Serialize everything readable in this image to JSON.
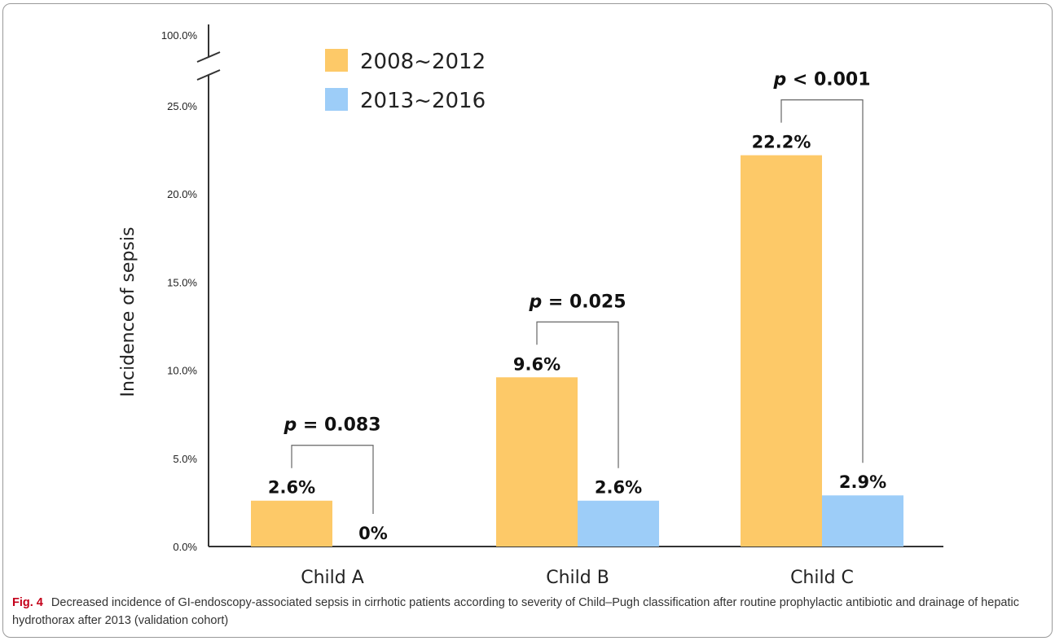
{
  "chart_data": {
    "type": "bar",
    "categories": [
      "Child A",
      "Child B",
      "Child C"
    ],
    "series": [
      {
        "name": "2008~2012",
        "values": [
          2.6,
          9.6,
          22.2
        ],
        "labels": [
          "2.6%",
          "9.6%",
          "22.2%"
        ],
        "color": "#fdc968"
      },
      {
        "name": "2013~2016",
        "values": [
          0,
          2.6,
          2.9
        ],
        "labels": [
          "0%",
          "2.6%",
          "2.9%"
        ],
        "color": "#9dcdf8"
      }
    ],
    "ylabel": "Incidence of sepsis",
    "yticks": [
      "0.0%",
      "5.0%",
      "10.0%",
      "15.0%",
      "20.0%",
      "25.0%"
    ],
    "ytick_values": [
      0,
      5,
      10,
      15,
      20,
      25
    ],
    "ytop_tick": "100.0%",
    "axis_break": true,
    "ylim": [
      0,
      25
    ],
    "legend_position": "top-left",
    "grid": false,
    "annotations": [
      {
        "category": "Child A",
        "text": "p = 0.083",
        "p_symbol": "p",
        "rest": " = 0.083"
      },
      {
        "category": "Child B",
        "text": "p = 0.025",
        "p_symbol": "p",
        "rest": " = 0.025"
      },
      {
        "category": "Child C",
        "text": "p < 0.001",
        "p_symbol": "p",
        "rest": " < 0.001"
      }
    ]
  },
  "caption": {
    "label": "Fig. 4",
    "text": "Decreased incidence of GI-endoscopy-associated sepsis in cirrhotic patients according to severity of Child–Pugh classification after routine prophylactic antibiotic and drainage of hepatic hydrothorax after 2013 (validation cohort)"
  }
}
